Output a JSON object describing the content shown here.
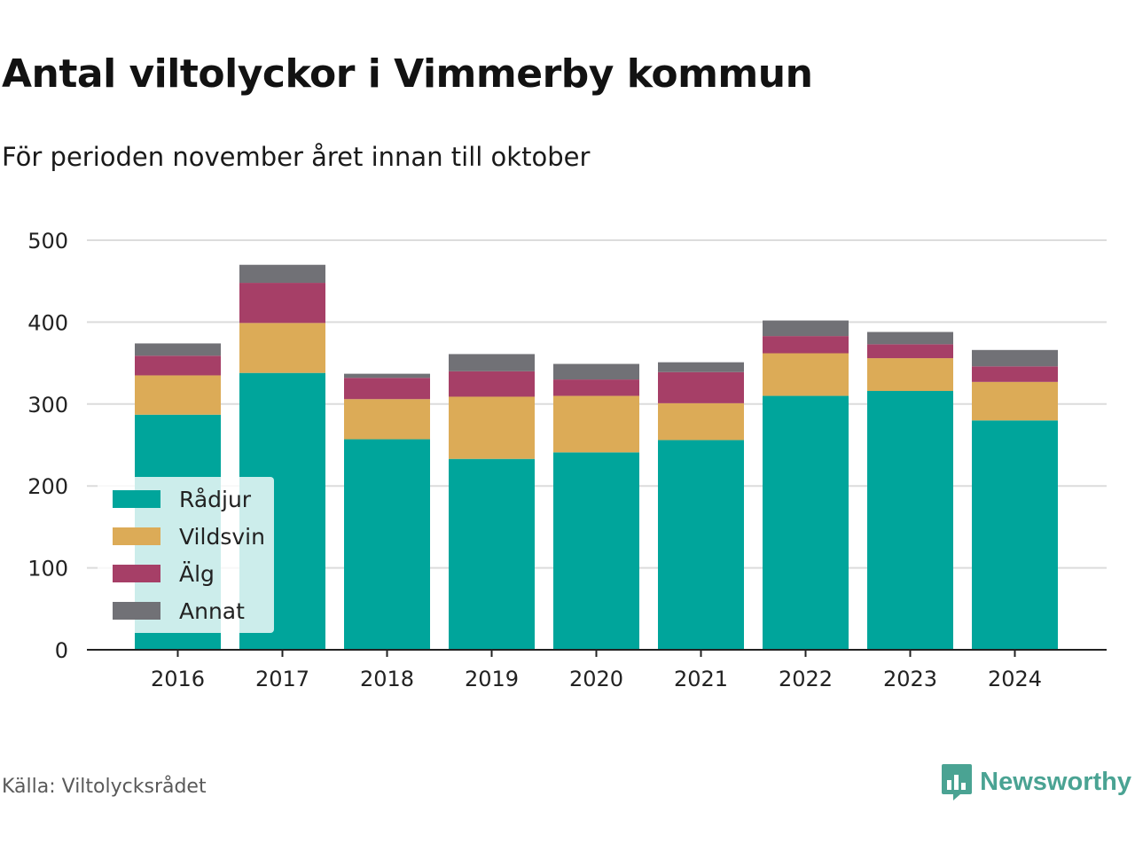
{
  "header": {
    "title": "Antal viltolyckor i Vimmerby kommun",
    "subtitle": "För perioden november året innan till oktober"
  },
  "footer": {
    "source": "Källa: Viltolycksrådet",
    "brand": "Newsworthy",
    "brand_icon": "bar-chart-speech-bubble-icon"
  },
  "chart_data": {
    "type": "bar",
    "stacked": true,
    "title": "Antal viltolyckor i Vimmerby kommun",
    "subtitle": "För perioden november året innan till oktober",
    "categories": [
      "2016",
      "2017",
      "2018",
      "2019",
      "2020",
      "2021",
      "2022",
      "2023",
      "2024"
    ],
    "series": [
      {
        "name": "Rådjur",
        "color": "#00a59b",
        "values": [
          287,
          338,
          257,
          233,
          241,
          256,
          310,
          316,
          280
        ]
      },
      {
        "name": "Vildsvin",
        "color": "#dcab57",
        "values": [
          48,
          61,
          49,
          76,
          69,
          45,
          52,
          40,
          47
        ]
      },
      {
        "name": "Älg",
        "color": "#a63f67",
        "values": [
          24,
          49,
          26,
          31,
          20,
          38,
          21,
          17,
          19
        ]
      },
      {
        "name": "Annat",
        "color": "#717176",
        "values": [
          15,
          22,
          5,
          21,
          19,
          12,
          19,
          15,
          20
        ]
      }
    ],
    "ylim": [
      0,
      500
    ],
    "yticks": [
      0,
      100,
      200,
      300,
      400,
      500
    ],
    "grid": true,
    "legend": "bottom-left"
  }
}
